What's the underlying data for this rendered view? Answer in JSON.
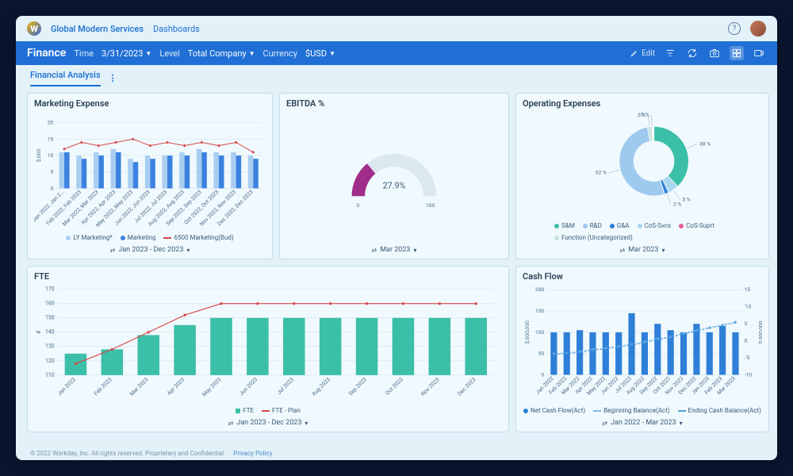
{
  "topbar": {
    "org": "Global Modern Services",
    "dashboards": "Dashboards"
  },
  "bluebar": {
    "title": "Finance",
    "time_label": "Time",
    "time_value": "3/31/2023",
    "level_label": "Level",
    "level_value": "Total Company",
    "currency_label": "Currency",
    "currency_value": "$USD",
    "edit": "Edit"
  },
  "tab": "Financial Analysis",
  "marketing": {
    "title": "Marketing Expense",
    "ylabel": "$,000",
    "yticks": [
      0,
      5,
      10,
      15,
      20
    ],
    "xlabels": [
      "Jan 2022, Jan 2...",
      "Feb 2022, Feb 2023",
      "Mar 2022, Mar 2023",
      "Apr 2022, Apr 2023",
      "May 2022, May 2023",
      "Jun 2022, Jun 2023",
      "Jul 2022, Jul 2023",
      "Aug 2022, Aug 2023",
      "Sep 2022, Sep 2023",
      "Oct 2022, Oct 2023",
      "Nov 2022, Nov 2023",
      "Dec 2022, Dec 2023"
    ],
    "ly": [
      11,
      10,
      11,
      12,
      9,
      10,
      10,
      11,
      12,
      11,
      11,
      10
    ],
    "curr": [
      11,
      9,
      10,
      11,
      8,
      9,
      10,
      10,
      11,
      10,
      10,
      9
    ],
    "line": [
      12,
      14,
      13,
      14,
      15,
      13,
      14,
      13,
      14,
      13,
      14,
      11
    ],
    "ly_color": "#a9cef2",
    "curr_color": "#3b82e0",
    "line_color": "#d64545",
    "legend": [
      {
        "label": "LY Marketing*",
        "type": "dot",
        "color": "#a9cef2"
      },
      {
        "label": "Marketing",
        "type": "dot",
        "color": "#3b82e0"
      },
      {
        "label": "6500 Marketing(Bud)",
        "type": "ln",
        "color": "#d64545"
      }
    ],
    "range": "Jan 2023 - Dec 2023"
  },
  "ebitda": {
    "title": "EBITDA %",
    "value": "27.9%",
    "min": "0",
    "max": "100",
    "pct": 27.9,
    "arc_color": "#a02d8a",
    "track_color": "#dce8f0",
    "range": "Mar 2023"
  },
  "opex": {
    "title": "Operating Expenses",
    "slices": [
      {
        "label": "S&M",
        "pct": 38,
        "color": "#3bbfa8"
      },
      {
        "label": "CoS-Svcs",
        "pct": 5,
        "color": "#a9d6ef"
      },
      {
        "label": "G&A",
        "pct": 2,
        "color": "#2e7fd8"
      },
      {
        "label": "R&D",
        "pct": 52,
        "color": "#9fcaf0"
      },
      {
        "label": "Function (Uncategorized)",
        "pct": 2,
        "color": "#c9e3d8"
      },
      {
        "label": "CoS-Suprt",
        "pct": 0,
        "color": "#e85a9a"
      }
    ],
    "legend": [
      {
        "label": "S&M",
        "color": "#3bbfa8"
      },
      {
        "label": "R&D",
        "color": "#9fcaf0"
      },
      {
        "label": "G&A",
        "color": "#2e7fd8"
      },
      {
        "label": "CoS-Svcs",
        "color": "#a9d6ef"
      },
      {
        "label": "CoS-Suprt",
        "color": "#e85a9a"
      },
      {
        "label": "Function (Uncategorized)",
        "color": "#c9e3d8"
      }
    ],
    "callouts": [
      "0 %",
      "2 %",
      "38 %",
      "5 %",
      "2 %",
      "52 %"
    ],
    "range": "Mar 2023"
  },
  "fte": {
    "title": "FTE",
    "ylabel": "#",
    "yticks": [
      110,
      120,
      130,
      140,
      150,
      160,
      170
    ],
    "xlabels": [
      "Jan 2023",
      "Feb 2023",
      "Mar 2023",
      "Apr 2023",
      "May 2023",
      "Jun 2023",
      "Jul 2023",
      "Aug 2023",
      "Sep 2023",
      "Oct 2023",
      "Nov 2023",
      "Dec 2023"
    ],
    "bars": [
      125,
      128,
      138,
      145,
      150,
      150,
      150,
      150,
      150,
      150,
      150,
      150
    ],
    "line": [
      118,
      128,
      140,
      152,
      160,
      160,
      160,
      160,
      160,
      160,
      160,
      160
    ],
    "bar_color": "#3bbfa8",
    "line_color": "#d64545",
    "legend": [
      {
        "label": "FTE",
        "type": "sq",
        "color": "#3bbfa8"
      },
      {
        "label": "FTE - Plan",
        "type": "ln",
        "color": "#d64545"
      }
    ],
    "range": "Jan 2023 - Dec 2023"
  },
  "cashflow": {
    "title": "Cash Flow",
    "ylabel_left": "$,000,000",
    "ylabel_right": "000'000'$",
    "yticks": [
      0,
      50,
      100,
      150,
      200
    ],
    "yticks_right": [
      "-10",
      "-'5",
      "0",
      "5",
      "'10",
      "15"
    ],
    "xlabels": [
      "Jan 2022",
      "Feb 2022",
      "Mar 2022",
      "Apr 2022",
      "May 2022",
      "Jun 2022",
      "Jul 2022",
      "Aug 2022",
      "Sep 2022",
      "Oct 2022",
      "Nov 2022",
      "Dec 2022",
      "Jan 2023",
      "Feb 2023",
      "Mar 2023"
    ],
    "bars": [
      100,
      100,
      105,
      100,
      100,
      100,
      145,
      100,
      120,
      105,
      100,
      120,
      100,
      115,
      100
    ],
    "line1": [
      50,
      52,
      55,
      60,
      63,
      68,
      72,
      78,
      85,
      90,
      98,
      105,
      112,
      118,
      125
    ],
    "line2": [
      48,
      50,
      53,
      58,
      61,
      66,
      70,
      76,
      83,
      88,
      96,
      103,
      110,
      116,
      123
    ],
    "bar_color": "#2e7fd8",
    "line1_color": "#7fb8e8",
    "line2_color": "#4a9fd8",
    "legend": [
      {
        "label": "Net Cash Flow(Act)",
        "type": "dot",
        "color": "#2e7fd8"
      },
      {
        "label": "Beginning Balance(Act)",
        "type": "ln",
        "color": "#7fb8e8"
      },
      {
        "label": "Ending Cash Balance(Act)",
        "type": "ln",
        "color": "#4a9fd8"
      }
    ],
    "range": "Jan 2022 - Mar 2023"
  },
  "footer": {
    "copyright": "© 2022 Workday, Inc. All rights reserved. Proprietary and Confidential",
    "privacy": "Privacy Policy"
  }
}
